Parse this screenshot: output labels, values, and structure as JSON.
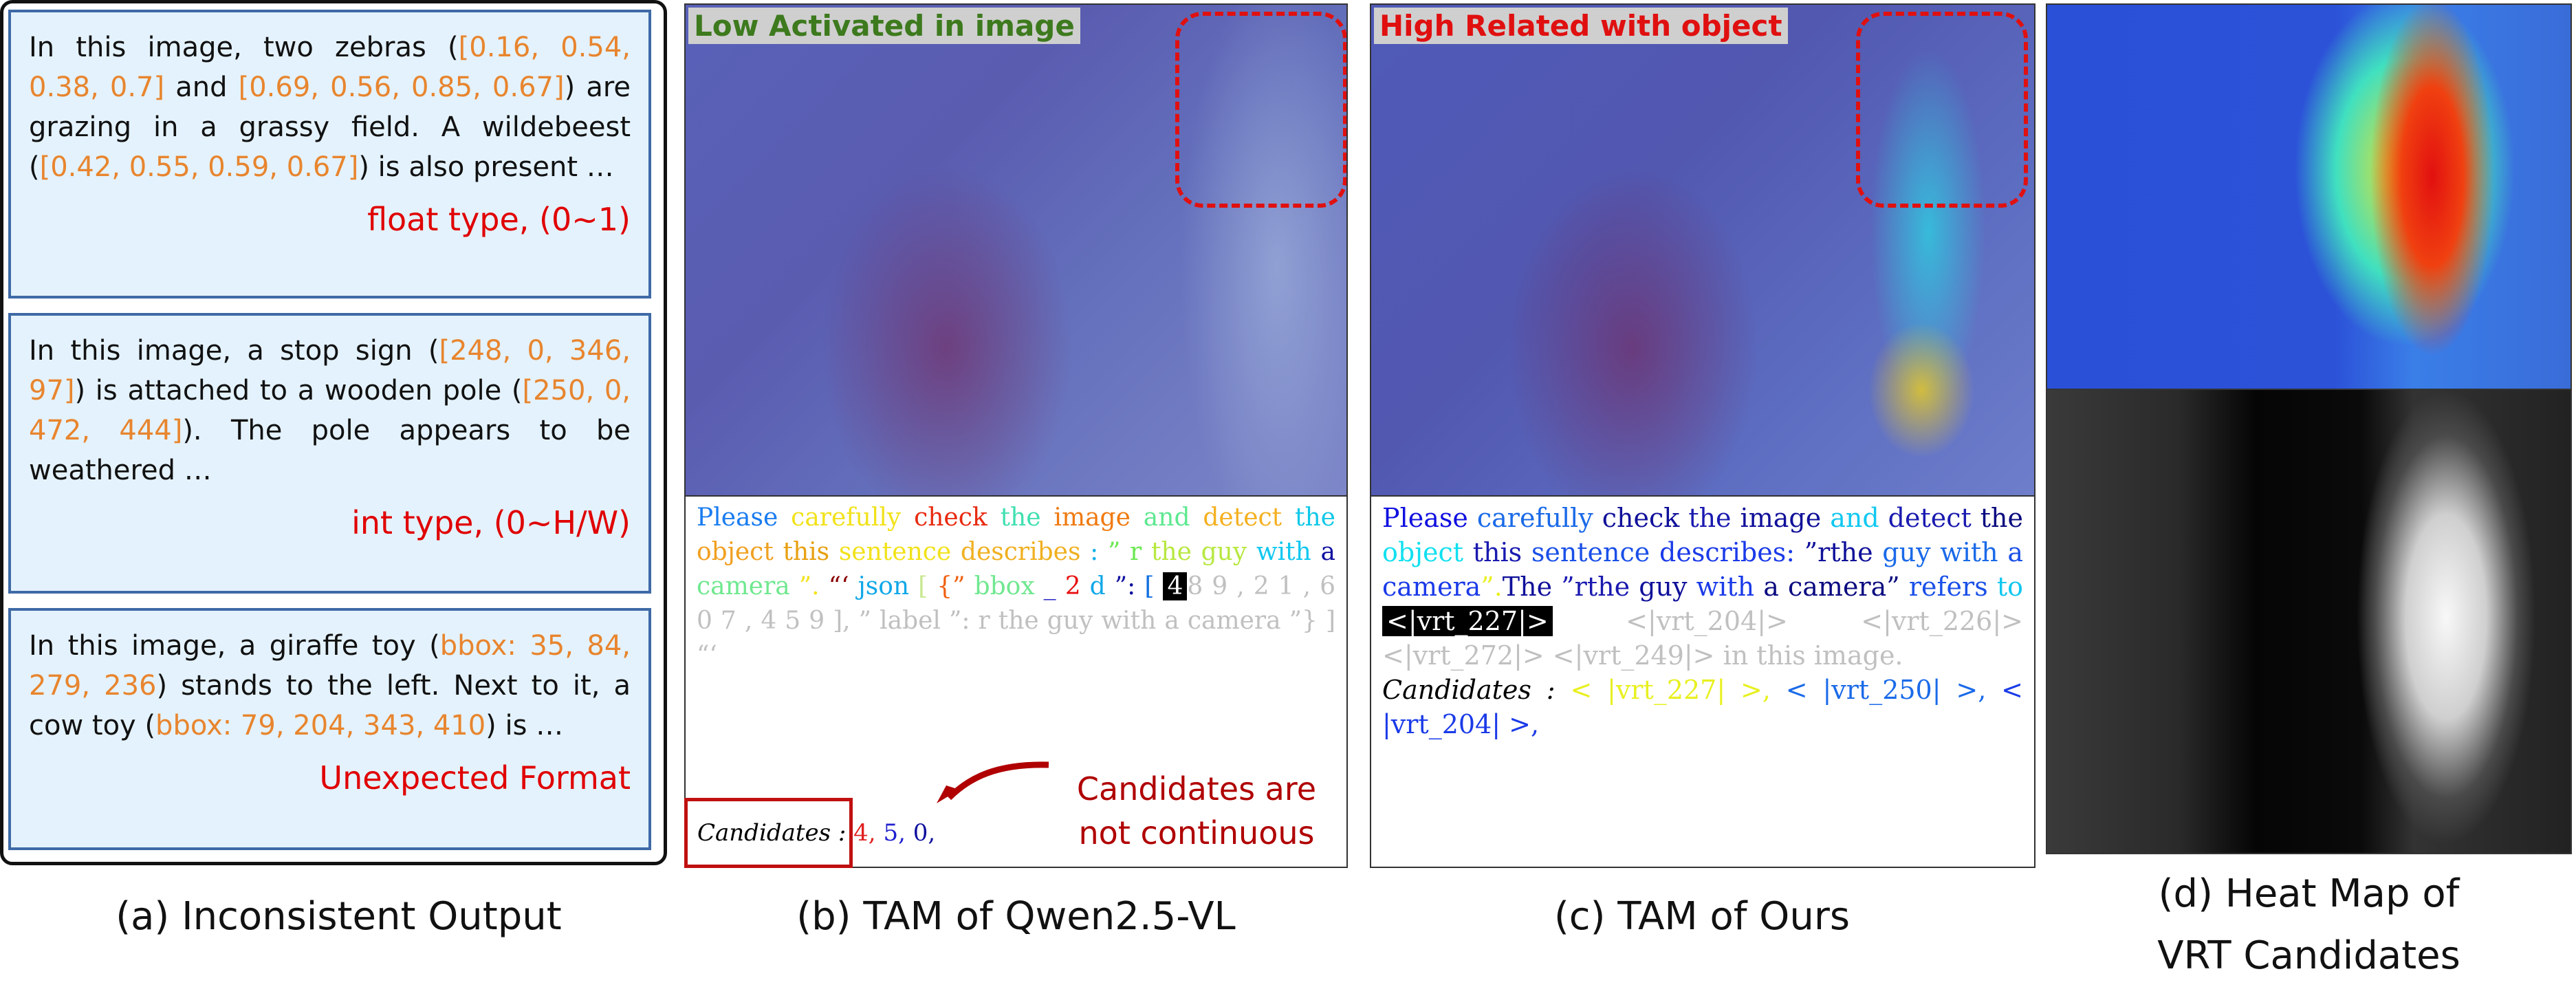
{
  "panel_a": {
    "caption": "(a) Inconsistent Output",
    "examples": [
      {
        "runs": [
          [
            "In this image, two zebras (",
            "#111"
          ],
          [
            "[0.16, 0.54, 0.38, 0.7]",
            "#e8852e"
          ],
          [
            " and ",
            "#111"
          ],
          [
            "[0.69, 0.56, 0.85, 0.67]",
            "#e8852e"
          ],
          [
            ") are grazing in a grassy field. A wildebeest (",
            "#111"
          ],
          [
            "[0.42, 0.55, 0.59, 0.67]",
            "#e8852e"
          ],
          [
            ") is also present …",
            "#111"
          ]
        ],
        "note": "float type, (0~1)"
      },
      {
        "runs": [
          [
            "In this image, a stop sign (",
            "#111"
          ],
          [
            "[248, 0, 346, 97]",
            "#e8852e"
          ],
          [
            ") is attached to a wooden pole (",
            "#111"
          ],
          [
            "[250, 0, 472, 444]",
            "#e8852e"
          ],
          [
            "). The pole appears to be weathered …",
            "#111"
          ]
        ],
        "note": "int type, (0~H/W)"
      },
      {
        "runs": [
          [
            "In this image, a giraffe toy (",
            "#111"
          ],
          [
            "bbox: 35, 84, 279, 236",
            "#e8852e"
          ],
          [
            ") stands to the left. Next to it, a cow toy (",
            "#111"
          ],
          [
            "bbox: 79, 204, 343, 410",
            "#e8852e"
          ],
          [
            ") is …",
            "#111"
          ]
        ],
        "note": "Unexpected Format"
      }
    ]
  },
  "panel_b": {
    "caption": "(b) TAM of Qwen2.5-VL",
    "image_label": "Low Activated in image",
    "image_label_color": "#3d7a1e",
    "runs": [
      [
        "Please ",
        "#1a7cf0"
      ],
      [
        "carefully ",
        "#f2e21a"
      ],
      [
        "check ",
        "#e82a10"
      ],
      [
        "the ",
        "#3fe0b0"
      ],
      [
        "image ",
        "#f07a10"
      ],
      [
        "and ",
        "#5ee890"
      ],
      [
        "detect ",
        "#f5b020"
      ],
      [
        "the ",
        "#10c8e8"
      ],
      [
        "object ",
        "#f0a020"
      ],
      [
        "this ",
        "#e8a010"
      ],
      [
        "sentence ",
        "#f2e21a"
      ],
      [
        "describes ",
        "#f0b020"
      ],
      [
        ": ",
        "#10b0e8"
      ],
      [
        "” r ",
        "#6ae850"
      ],
      [
        "the guy ",
        "#b8e840"
      ],
      [
        "with ",
        "#10c8f0"
      ],
      [
        "a ",
        "#1010a0"
      ],
      [
        "camera ",
        "#70e890"
      ],
      [
        "”. ",
        "#f2e21a"
      ],
      [
        "“‘ ",
        "#8a0000"
      ],
      [
        "json ",
        "#10a8e8"
      ],
      [
        "[ ",
        "#c8e890"
      ],
      [
        "{” ",
        "#f06010"
      ],
      [
        "bbox ",
        "#70e890"
      ],
      [
        "_ ",
        "#1010c0"
      ],
      [
        "2 ",
        "#e81010"
      ],
      [
        "d ",
        "#10a8e8"
      ],
      [
        "”: ",
        "#1010a0"
      ],
      [
        "[ ",
        "#1070e0"
      ],
      [
        "4",
        "HL"
      ],
      [
        "8 9 , 2 1 , 6 0 7 , 4 5 9 ], ” label ”: r the guy with a camera ”} ] “‘",
        "#c0c0c0"
      ]
    ],
    "candidates_label": "Candidates :",
    "candidates": [
      [
        "4,",
        "#e02020"
      ],
      [
        "5,",
        "#2020d0"
      ],
      [
        "0,",
        "#1010a0"
      ]
    ],
    "annotation": "Candidates are not continuous",
    "annotation_color": "#b00000"
  },
  "panel_c": {
    "caption": "(c) TAM of Ours",
    "image_label": "High Related with object",
    "image_label_color": "#e01010",
    "runs": [
      [
        "Please ",
        "#1010e0"
      ],
      [
        "carefully ",
        "#1a6ae8"
      ],
      [
        "check ",
        "#10109a"
      ],
      [
        "the ",
        "#1a1ab0"
      ],
      [
        "image ",
        "#10109a"
      ],
      [
        "and ",
        "#10c8f0"
      ],
      [
        "detect ",
        "#1a1ab0"
      ],
      [
        "the ",
        "#0a0a80"
      ],
      [
        "object ",
        "#10e0f0"
      ],
      [
        "this ",
        "#1a1ab0"
      ],
      [
        "sentence ",
        "#1a50e8"
      ],
      [
        "describes: ",
        "#1a3ae8"
      ],
      [
        "”rthe ",
        "#10109a"
      ],
      [
        "guy ",
        "#1a6ae8"
      ],
      [
        "with ",
        "#1a6ae8"
      ],
      [
        "a ",
        "#1a50e8"
      ],
      [
        "camera",
        "#1a3ae8"
      ],
      [
        "”.",
        "#e8f020"
      ],
      [
        "The ",
        "#10109a"
      ],
      [
        "”rthe ",
        "#1a1ab0"
      ],
      [
        "guy ",
        "#10109a"
      ],
      [
        "with ",
        "#1a3ae8"
      ],
      [
        "a camera” ",
        "#0a0a80"
      ],
      [
        "refers ",
        "#1a50e8"
      ],
      [
        "to ",
        "#10c8f0"
      ],
      [
        "<|vrt_227|>",
        "HL"
      ],
      [
        " <|vrt_204|> <|vrt_226|> <|vrt_272|> <|vrt_249|> in this image.",
        "#c0c0c0"
      ]
    ],
    "candidates_label": "Candidates :",
    "candidates": [
      [
        "< |vrt_227| >,",
        "#e8f020"
      ],
      [
        "< |vrt_250| >,",
        "#1a6ae8"
      ],
      [
        "< |vrt_204| >,",
        "#1a3ae8"
      ]
    ]
  },
  "panel_d": {
    "caption_line1": "(d) Heat Map of",
    "caption_line2": "VRT Candidates"
  }
}
